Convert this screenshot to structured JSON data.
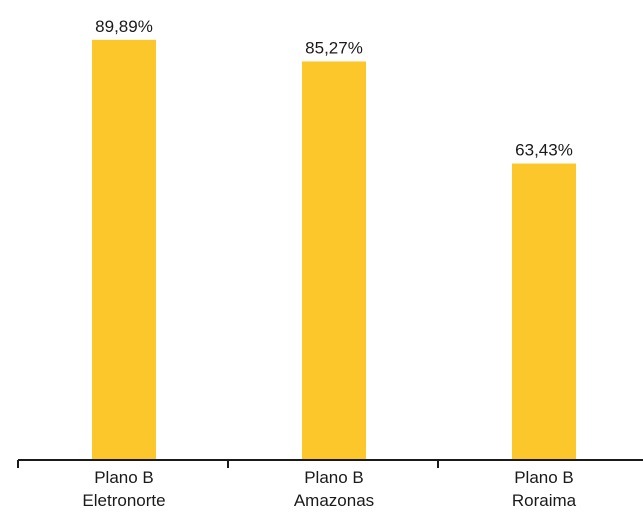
{
  "chart_data": {
    "type": "bar",
    "categories": [
      [
        "Plano B",
        "Eletronorte"
      ],
      [
        "Plano B",
        "Amazonas"
      ],
      [
        "Plano B",
        "Roraima"
      ]
    ],
    "values": [
      89.89,
      85.27,
      63.43
    ],
    "value_labels": [
      "89,89%",
      "85,27%",
      "63,43%"
    ],
    "bar_color": "#FCC72A",
    "axis_color": "#1a1a1a",
    "ylim": [
      0,
      92
    ],
    "grid": false,
    "legend": "none",
    "title": "",
    "xlabel": "",
    "ylabel": ""
  }
}
